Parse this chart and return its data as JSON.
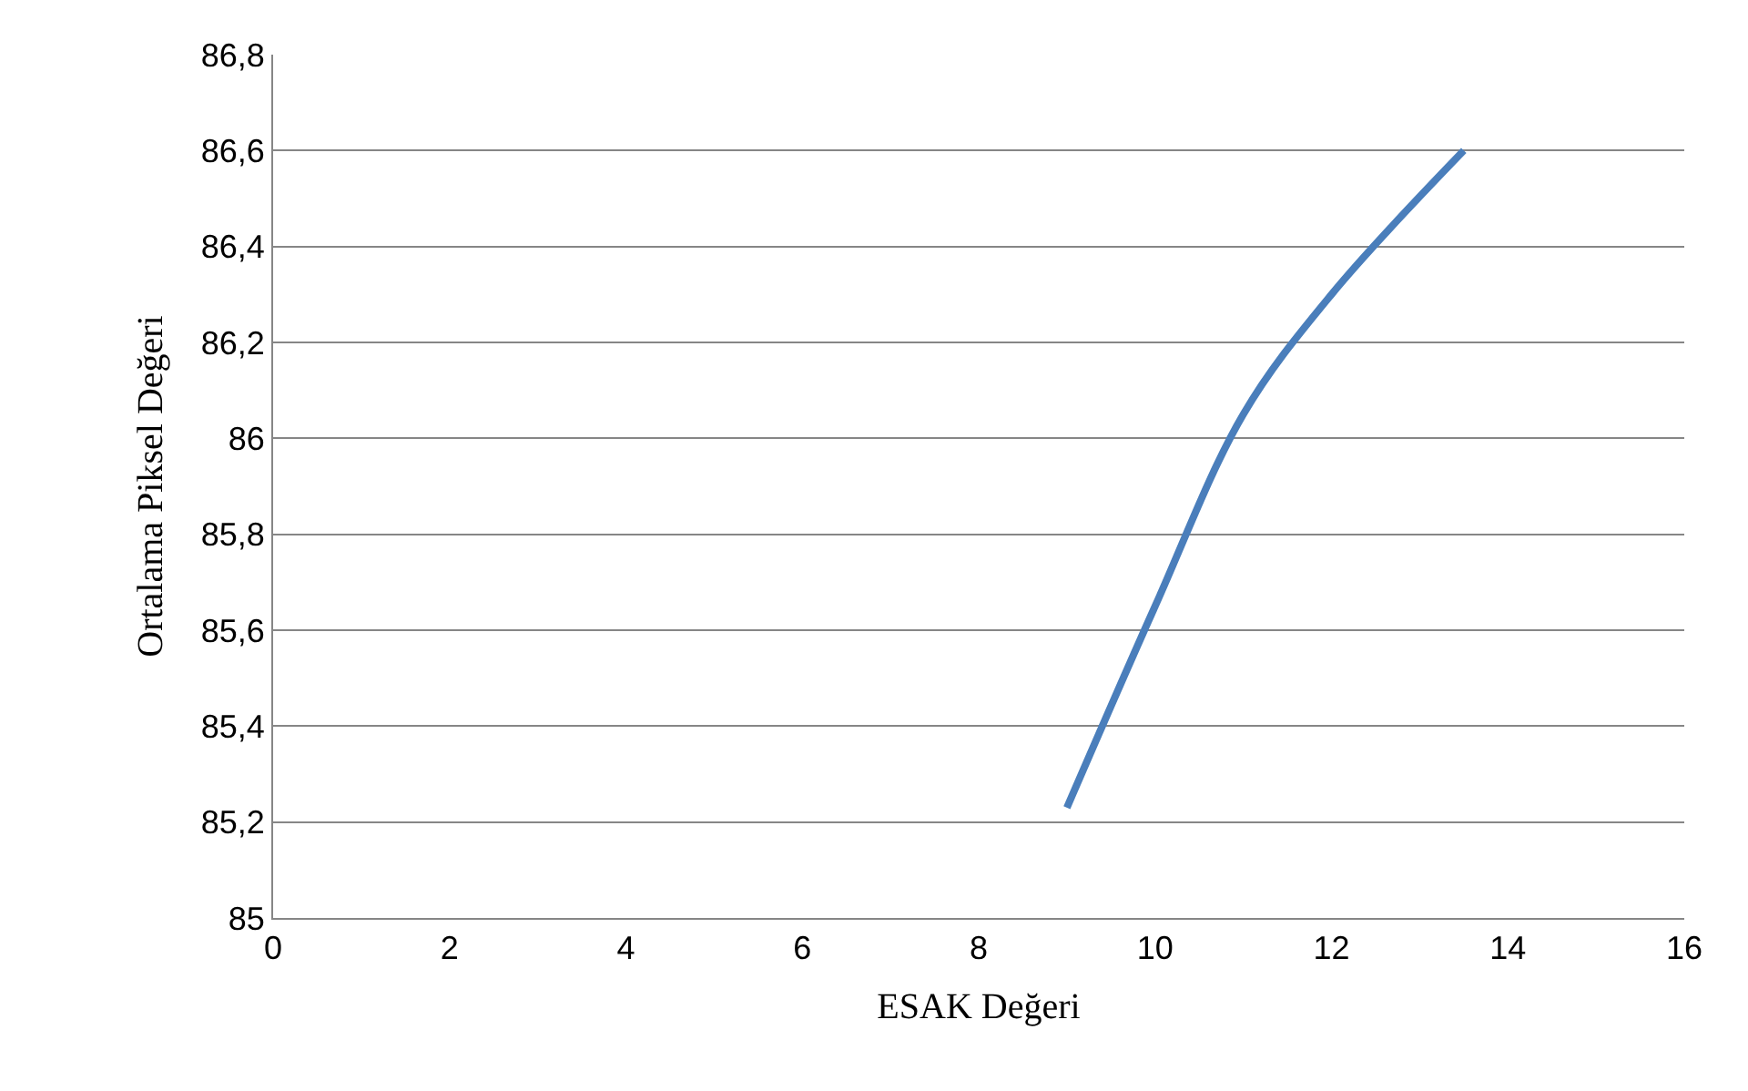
{
  "chart_data": {
    "type": "line",
    "xlabel": "ESAK Değeri",
    "ylabel": "Ortalama Piksel Değeri",
    "x": [
      9,
      10,
      11,
      12,
      13.5
    ],
    "series": [
      {
        "color": "#4a7ebb",
        "values": [
          85.23,
          85.65,
          86.05,
          86.3,
          86.6
        ]
      }
    ],
    "xlim": [
      0,
      16
    ],
    "xticks": [
      0,
      2,
      4,
      6,
      8,
      10,
      12,
      14,
      16
    ],
    "ylim": [
      85,
      86.8
    ],
    "yticks": [
      {
        "value": 85,
        "label": "85"
      },
      {
        "value": 85.2,
        "label": "85,2"
      },
      {
        "value": 85.4,
        "label": "85,4"
      },
      {
        "value": 85.6,
        "label": "85,6"
      },
      {
        "value": 85.8,
        "label": "85,8"
      },
      {
        "value": 86,
        "label": "86"
      },
      {
        "value": 86.2,
        "label": "86,2"
      },
      {
        "value": 86.4,
        "label": "86,4"
      },
      {
        "value": 86.6,
        "label": "86,6"
      },
      {
        "value": 86.8,
        "label": "86,8"
      }
    ],
    "grid": "y",
    "legend": false,
    "marker": "none",
    "line_style": "solid"
  }
}
